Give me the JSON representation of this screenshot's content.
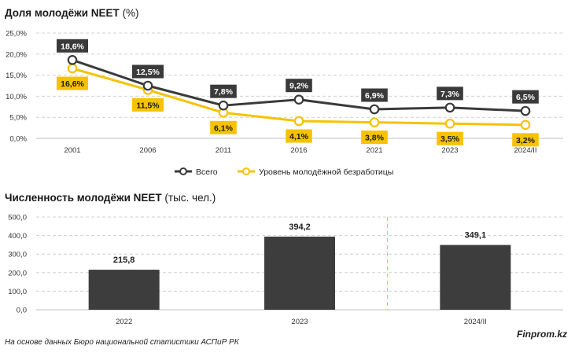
{
  "chart_data": [
    {
      "type": "line",
      "title": "Доля молодёжи NEET",
      "title_unit": "(%)",
      "categories": [
        "2001",
        "2006",
        "2011",
        "2016",
        "2021",
        "2023",
        "2024/II"
      ],
      "ylim": [
        0,
        25
      ],
      "yticks": [
        "0,0%",
        "5,0%",
        "10,0%",
        "15,0%",
        "20,0%",
        "25,0%"
      ],
      "grid": true,
      "legend_placement": "bottom",
      "series": [
        {
          "name": "Всего",
          "values": [
            18.6,
            12.5,
            7.8,
            9.2,
            6.9,
            7.3,
            6.5
          ],
          "labels": [
            "18,6%",
            "12,5%",
            "7,8%",
            "9,2%",
            "6,9%",
            "7,3%",
            "6,5%"
          ],
          "color": "#3a3a3a"
        },
        {
          "name": "Уровень молодёжной безработицы",
          "values": [
            16.6,
            11.5,
            6.1,
            4.1,
            3.8,
            3.5,
            3.2
          ],
          "labels": [
            "16,6%",
            "11,5%",
            "6,1%",
            "4,1%",
            "3,8%",
            "3,5%",
            "3,2%"
          ],
          "color": "#f7c200"
        }
      ]
    },
    {
      "type": "bar",
      "title": "Численность молодёжи NEET",
      "title_unit": "(тыс. чел.)",
      "categories": [
        "2022",
        "2023",
        "2024/II"
      ],
      "values": [
        215.8,
        394.2,
        349.1
      ],
      "labels": [
        "215,8",
        "394,2",
        "349,1"
      ],
      "ylim": [
        0,
        500
      ],
      "yticks": [
        "0,0",
        "100,0",
        "200,0",
        "300,0",
        "400,0",
        "500,0"
      ],
      "grid": true,
      "bar_color": "#3d3d3d",
      "separator_color": "#f2b705"
    }
  ],
  "footer": {
    "source": "На основе данных Бюро национальной статистики АСПиР РК",
    "brand": "Finprom.kz"
  }
}
